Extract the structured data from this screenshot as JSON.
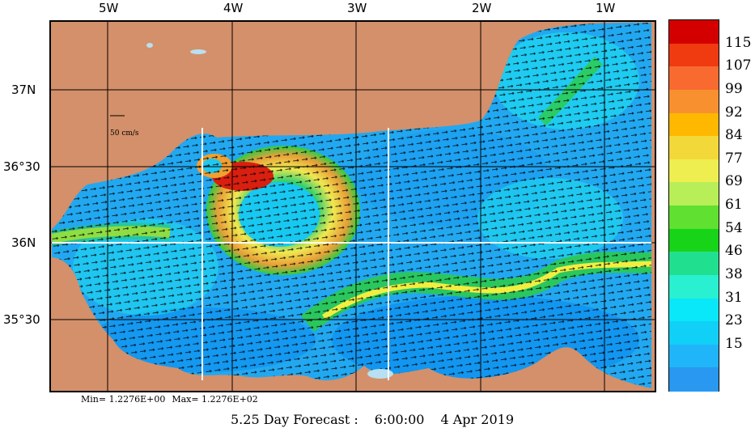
{
  "map": {
    "longitude_labels": [
      "5W",
      "4W",
      "3W",
      "2W",
      "1W"
    ],
    "latitude_labels": [
      "37N",
      "36°30",
      "36N",
      "35°30"
    ],
    "reference_vector_label": "50 cm/s",
    "colors": {
      "land": "#d4906a",
      "sea_base": "#22a8f0",
      "deep_blue": "#0b8ef0",
      "cyan": "#1ee8f0",
      "green": "#2ccc44",
      "yellow": "#f2ee40",
      "orange": "#f2a030",
      "red": "#d81f10",
      "grid": "#000000",
      "section_line": "#ffffff"
    }
  },
  "stats": {
    "min_label": "Min= 1.2276E+00",
    "max_label": "Max= 1.2276E+02"
  },
  "caption": {
    "forecast": "5.25 Day Forecast :",
    "time": "6:00:00",
    "date": "4 Apr 2019"
  },
  "legend": {
    "labels": [
      "115",
      "107",
      "99",
      "92",
      "84",
      "77",
      "69",
      "61",
      "54",
      "46",
      "38",
      "31",
      "23",
      "15"
    ],
    "colors": [
      "#d40000",
      "#f03a10",
      "#f86a30",
      "#f89030",
      "#ffb800",
      "#f2d838",
      "#eeee50",
      "#b8ee58",
      "#60e030",
      "#18d418",
      "#20e090",
      "#28f0d0",
      "#08e8f8",
      "#10d0f8",
      "#20b4f8",
      "#2898f0"
    ]
  }
}
